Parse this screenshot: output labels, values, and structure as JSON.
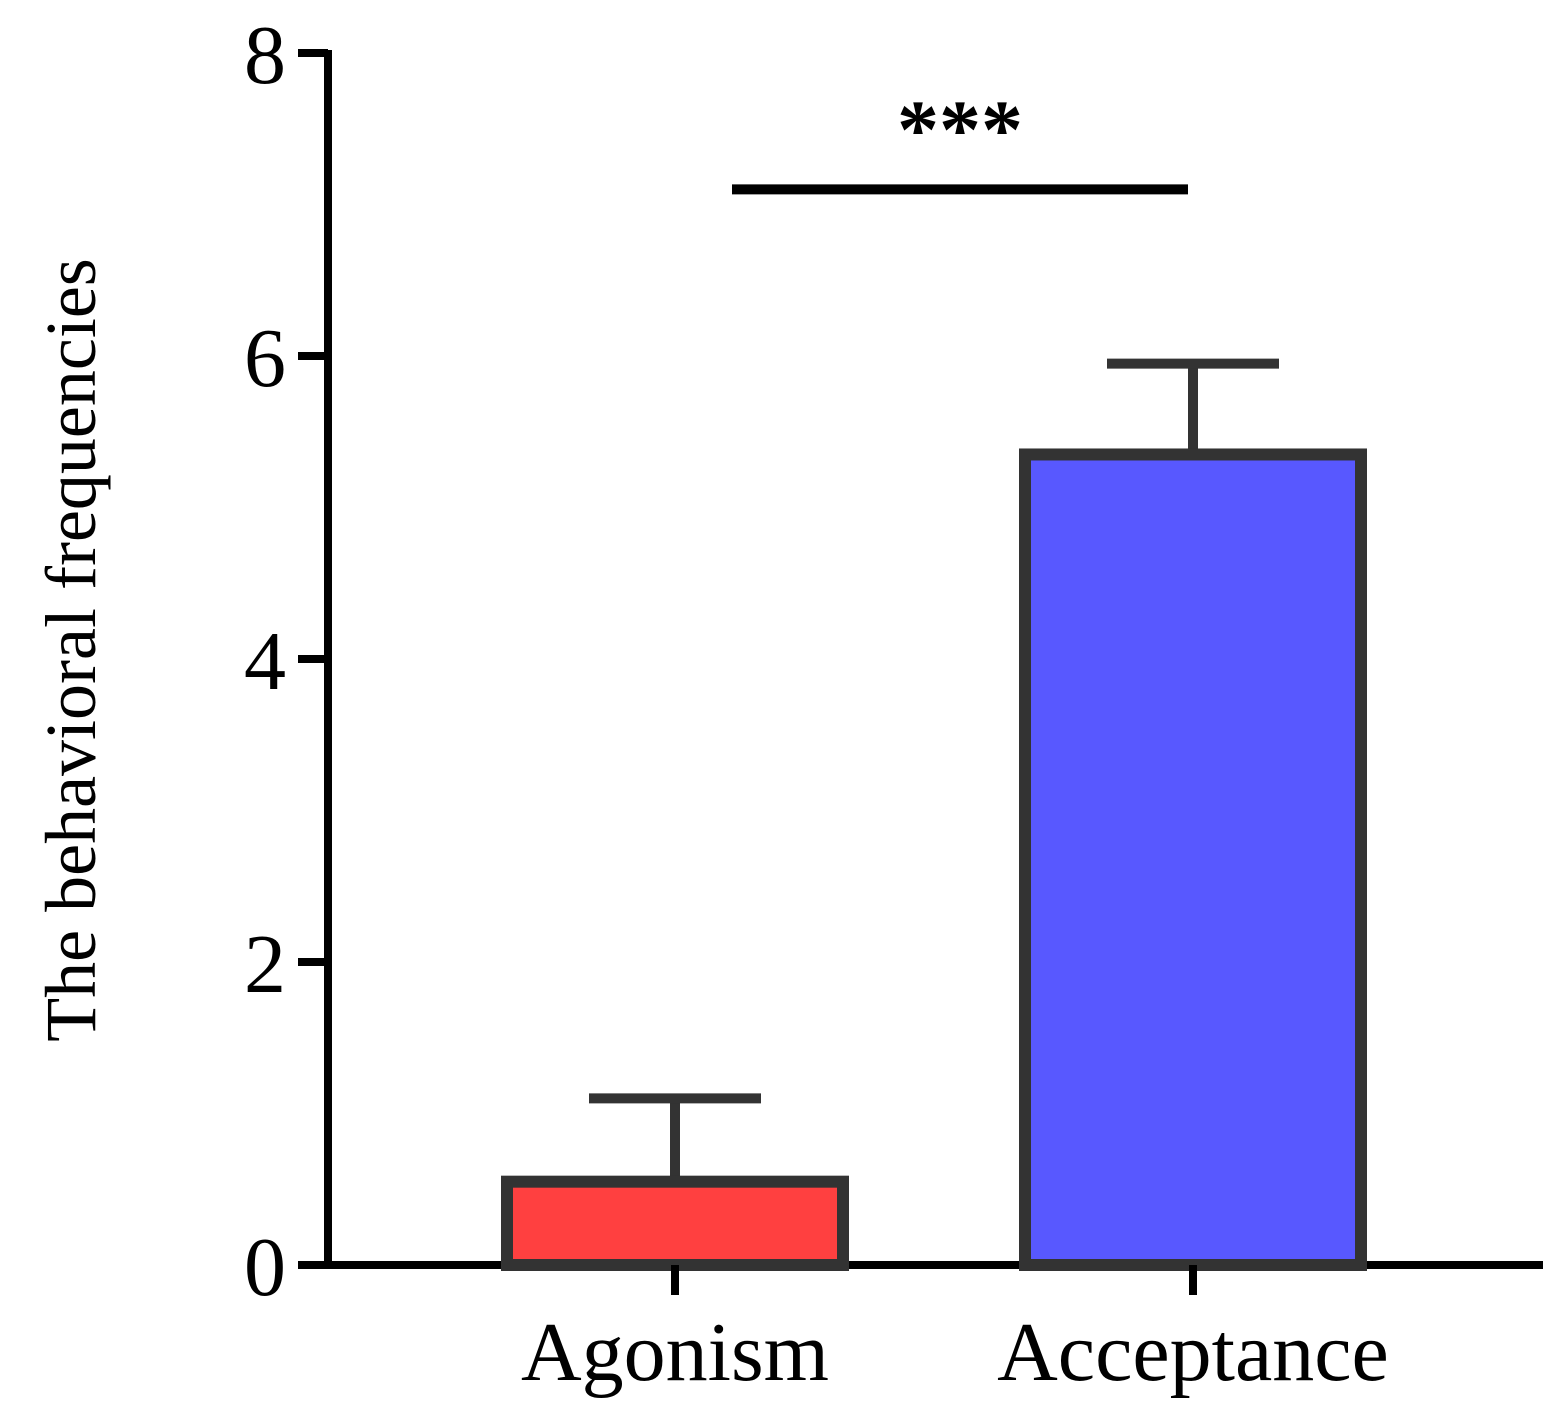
{
  "chart_data": {
    "type": "bar",
    "title": "",
    "xlabel": "",
    "ylabel": "The behavioral frequencies",
    "categories": [
      "Agonism",
      "Acceptance"
    ],
    "values": [
      0.55,
      5.35
    ],
    "error_upper": [
      1.1,
      5.95
    ],
    "colors": [
      "#FF4040",
      "#5858FF"
    ],
    "edge_color": "#333333",
    "ylim": [
      0,
      8
    ],
    "yticks": [
      0,
      2,
      4,
      6,
      8
    ],
    "ytick_labels": [
      "0",
      "2",
      "4",
      "6",
      "8"
    ],
    "grid": false,
    "annotations": [
      {
        "type": "significance",
        "text": "***",
        "between": [
          "Agonism",
          "Acceptance"
        ],
        "y": 7.1
      }
    ]
  }
}
